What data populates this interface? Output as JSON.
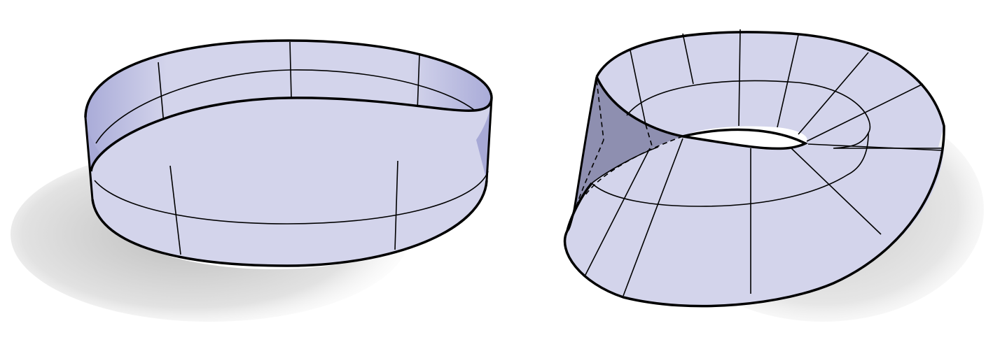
{
  "figure": {
    "panels": [
      {
        "shape": "cylindrical-band",
        "description_visible": false
      },
      {
        "shape": "mobius-strip",
        "description_visible": false
      }
    ]
  },
  "colors": {
    "surface_front": "#d3d4eb",
    "surface_back": "#a7a9d6",
    "surface_back_dark": "#8788a6",
    "outline": "#000000",
    "shadow": "#cfcfcf",
    "background": "#ffffff"
  }
}
